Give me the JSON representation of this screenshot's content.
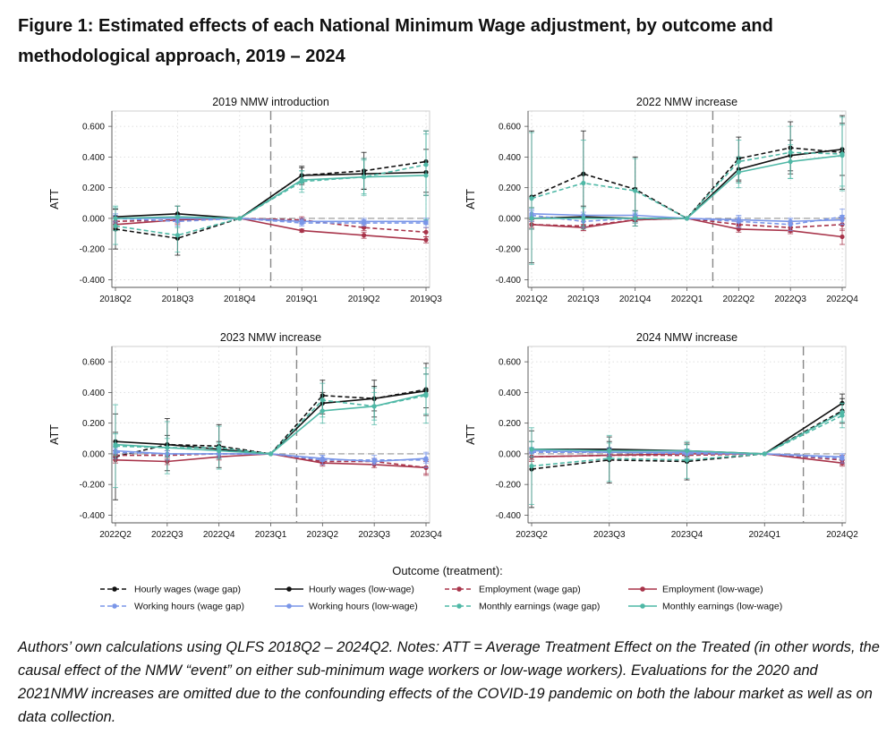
{
  "figure": {
    "title": "Figure 1: Estimated effects of each National Minimum Wage adjustment, by outcome and methodological approach, 2019 – 2024",
    "caption": "Authors’ own calculations using QLFS 2018Q2 – 2024Q2. Notes: ATT = Average Treatment Effect on the Treated (in other words, the causal effect of the NMW “event” on either sub-minimum wage workers or low-wage workers). Evaluations for the 2020 and 2021NMW increases are omitted due to the confounding effects of the COVID-19 pandemic on both the labour market as well as on data collection."
  },
  "legend": {
    "title": "Outcome (treatment):",
    "entries": [
      {
        "label": "Hourly wages (wage gap)",
        "color": "#111111",
        "dash": true
      },
      {
        "label": "Hourly wages (low-wage)",
        "color": "#111111",
        "dash": false
      },
      {
        "label": "Employment (wage gap)",
        "color": "#a8344a",
        "dash": true
      },
      {
        "label": "Employment (low-wage)",
        "color": "#a8344a",
        "dash": false
      },
      {
        "label": "Working hours (wage gap)",
        "color": "#7a96e8",
        "dash": true
      },
      {
        "label": "Working hours (low-wage)",
        "color": "#7a96e8",
        "dash": false
      },
      {
        "label": "Monthly earnings (wage gap)",
        "color": "#4fb8a6",
        "dash": true
      },
      {
        "label": "Monthly earnings (low-wage)",
        "color": "#4fb8a6",
        "dash": false
      }
    ]
  },
  "chart_data": [
    {
      "type": "line",
      "title": "2019 NMW introduction",
      "ylabel": "ATT",
      "ylim": [
        -0.45,
        0.7
      ],
      "yticks": [
        -0.4,
        -0.2,
        0.0,
        0.2,
        0.4,
        0.6
      ],
      "ytick_labels": [
        "-0.400",
        "-0.200",
        "0.000",
        "0.200",
        "0.400",
        "0.600"
      ],
      "categories": [
        "2018Q2",
        "2018Q3",
        "2018Q4",
        "2019Q1",
        "2019Q2",
        "2019Q3"
      ],
      "event_after_index": 2,
      "series": [
        {
          "name": "Hourly wages (wage gap)",
          "values": [
            -0.07,
            -0.13,
            0.0,
            0.28,
            0.31,
            0.37
          ],
          "ci": [
            0.13,
            0.11,
            0.0,
            0.06,
            0.12,
            0.2
          ]
        },
        {
          "name": "Hourly wages (low-wage)",
          "values": [
            0.01,
            0.03,
            0.0,
            0.28,
            0.29,
            0.3
          ],
          "ci": [
            0.05,
            0.05,
            0.0,
            0.05,
            0.1,
            0.15
          ]
        },
        {
          "name": "Employment (wage gap)",
          "values": [
            -0.02,
            -0.01,
            0.0,
            -0.01,
            -0.06,
            -0.09
          ],
          "ci": [
            0.03,
            0.03,
            0.0,
            0.02,
            0.02,
            0.03
          ]
        },
        {
          "name": "Employment (low-wage)",
          "values": [
            -0.04,
            -0.01,
            0.0,
            -0.08,
            -0.11,
            -0.14
          ],
          "ci": [
            0.02,
            0.02,
            0.0,
            0.01,
            0.02,
            0.02
          ]
        },
        {
          "name": "Working hours (wage gap)",
          "values": [
            0.0,
            -0.02,
            0.0,
            -0.03,
            -0.03,
            -0.03
          ],
          "ci": [
            0.03,
            0.03,
            0.0,
            0.02,
            0.02,
            0.03
          ]
        },
        {
          "name": "Working hours (low-wage)",
          "values": [
            0.0,
            0.0,
            0.0,
            -0.02,
            -0.02,
            -0.02
          ],
          "ci": [
            0.02,
            0.02,
            0.0,
            0.02,
            0.02,
            0.02
          ]
        },
        {
          "name": "Monthly earnings (wage gap)",
          "values": [
            -0.05,
            -0.11,
            0.0,
            0.24,
            0.27,
            0.35
          ],
          "ci": [
            0.12,
            0.11,
            0.0,
            0.07,
            0.12,
            0.2
          ]
        },
        {
          "name": "Monthly earnings (low-wage)",
          "values": [
            0.0,
            0.01,
            0.0,
            0.25,
            0.27,
            0.28
          ],
          "ci": [
            0.08,
            0.07,
            0.0,
            0.06,
            0.11,
            0.29
          ]
        }
      ]
    },
    {
      "type": "line",
      "title": "2022 NMW increase",
      "ylabel": "ATT",
      "ylim": [
        -0.45,
        0.7
      ],
      "yticks": [
        -0.4,
        -0.2,
        0.0,
        0.2,
        0.4,
        0.6
      ],
      "ytick_labels": [
        "-0.400",
        "-0.200",
        "0.000",
        "0.200",
        "0.400",
        "0.600"
      ],
      "categories": [
        "2021Q2",
        "2021Q3",
        "2021Q4",
        "2022Q1",
        "2022Q2",
        "2022Q3",
        "2022Q4"
      ],
      "event_after_index": 3,
      "series": [
        {
          "name": "Hourly wages (wage gap)",
          "values": [
            0.14,
            0.29,
            0.19,
            0.0,
            0.39,
            0.46,
            0.43
          ],
          "ci": [
            0.43,
            0.28,
            0.21,
            0.0,
            0.14,
            0.17,
            0.24
          ]
        },
        {
          "name": "Hourly wages (low-wage)",
          "values": [
            0.0,
            0.01,
            0.0,
            0.0,
            0.32,
            0.41,
            0.45
          ],
          "ci": [
            0.07,
            0.07,
            0.05,
            0.0,
            0.08,
            0.1,
            0.17
          ]
        },
        {
          "name": "Employment (wage gap)",
          "values": [
            -0.04,
            -0.05,
            -0.01,
            0.0,
            -0.04,
            -0.06,
            -0.04
          ],
          "ci": [
            0.03,
            0.03,
            0.02,
            0.0,
            0.02,
            0.03,
            0.04
          ]
        },
        {
          "name": "Employment (low-wage)",
          "values": [
            -0.04,
            -0.06,
            -0.01,
            0.0,
            -0.07,
            -0.08,
            -0.12
          ],
          "ci": [
            0.02,
            0.02,
            0.02,
            0.0,
            0.02,
            0.02,
            0.05
          ]
        },
        {
          "name": "Working hours (wage gap)",
          "values": [
            0.02,
            -0.02,
            0.0,
            0.0,
            -0.02,
            -0.04,
            0.01
          ],
          "ci": [
            0.04,
            0.04,
            0.03,
            0.0,
            0.04,
            0.04,
            0.05
          ]
        },
        {
          "name": "Working hours (low-wage)",
          "values": [
            0.03,
            0.02,
            0.02,
            0.0,
            -0.01,
            -0.02,
            -0.01
          ],
          "ci": [
            0.02,
            0.02,
            0.02,
            0.0,
            0.02,
            0.02,
            0.03
          ]
        },
        {
          "name": "Monthly earnings (wage gap)",
          "values": [
            0.13,
            0.23,
            0.18,
            0.0,
            0.37,
            0.43,
            0.42
          ],
          "ci": [
            0.43,
            0.28,
            0.21,
            0.0,
            0.14,
            0.17,
            0.24
          ]
        },
        {
          "name": "Monthly earnings (low-wage)",
          "values": [
            0.0,
            0.0,
            0.0,
            0.0,
            0.3,
            0.37,
            0.41
          ],
          "ci": [
            0.07,
            0.07,
            0.05,
            0.0,
            0.1,
            0.11,
            0.2
          ]
        }
      ]
    },
    {
      "type": "line",
      "title": "2023 NMW increase",
      "ylabel": "ATT",
      "ylim": [
        -0.45,
        0.7
      ],
      "yticks": [
        -0.4,
        -0.2,
        0.0,
        0.2,
        0.4,
        0.6
      ],
      "ytick_labels": [
        "-0.400",
        "-0.200",
        "0.000",
        "0.200",
        "0.400",
        "0.600"
      ],
      "categories": [
        "2022Q2",
        "2022Q3",
        "2022Q4",
        "2023Q1",
        "2023Q2",
        "2023Q3",
        "2023Q4"
      ],
      "event_after_index": 3,
      "series": [
        {
          "name": "Hourly wages (wage gap)",
          "values": [
            -0.02,
            0.06,
            0.05,
            0.0,
            0.38,
            0.36,
            0.42
          ],
          "ci": [
            0.28,
            0.17,
            0.14,
            0.0,
            0.1,
            0.12,
            0.17
          ]
        },
        {
          "name": "Hourly wages (low-wage)",
          "values": [
            0.08,
            0.06,
            0.03,
            0.0,
            0.33,
            0.36,
            0.41
          ],
          "ci": [
            0.06,
            0.06,
            0.05,
            0.0,
            0.07,
            0.08,
            0.11
          ]
        },
        {
          "name": "Employment (wage gap)",
          "values": [
            -0.01,
            -0.01,
            0.0,
            0.0,
            -0.05,
            -0.05,
            -0.09
          ],
          "ci": [
            0.03,
            0.03,
            0.02,
            0.0,
            0.02,
            0.02,
            0.04
          ]
        },
        {
          "name": "Employment (low-wage)",
          "values": [
            -0.04,
            -0.05,
            -0.02,
            0.0,
            -0.06,
            -0.07,
            -0.09
          ],
          "ci": [
            0.02,
            0.02,
            0.02,
            0.0,
            0.02,
            0.02,
            0.05
          ]
        },
        {
          "name": "Working hours (wage gap)",
          "values": [
            0.01,
            0.0,
            0.0,
            0.0,
            -0.04,
            -0.04,
            -0.04
          ],
          "ci": [
            0.04,
            0.04,
            0.03,
            0.0,
            0.03,
            0.03,
            0.05
          ]
        },
        {
          "name": "Working hours (low-wage)",
          "values": [
            0.02,
            0.0,
            0.0,
            0.0,
            -0.03,
            -0.05,
            -0.03
          ],
          "ci": [
            0.02,
            0.02,
            0.02,
            0.0,
            0.02,
            0.02,
            0.03
          ]
        },
        {
          "name": "Monthly earnings (wage gap)",
          "values": [
            0.05,
            0.04,
            0.04,
            0.0,
            0.35,
            0.31,
            0.38
          ],
          "ci": [
            0.27,
            0.17,
            0.14,
            0.0,
            0.11,
            0.12,
            0.18
          ]
        },
        {
          "name": "Monthly earnings (low-wage)",
          "values": [
            0.06,
            0.04,
            0.02,
            0.0,
            0.28,
            0.31,
            0.39
          ],
          "ci": [
            0.07,
            0.06,
            0.05,
            0.0,
            0.08,
            0.09,
            0.13
          ]
        }
      ]
    },
    {
      "type": "line",
      "title": "2024 NMW increase",
      "ylabel": "ATT",
      "ylim": [
        -0.45,
        0.7
      ],
      "yticks": [
        -0.4,
        -0.2,
        0.0,
        0.2,
        0.4,
        0.6
      ],
      "ytick_labels": [
        "-0.400",
        "-0.200",
        "0.000",
        "0.200",
        "0.400",
        "0.600"
      ],
      "categories": [
        "2023Q2",
        "2023Q3",
        "2023Q4",
        "2024Q1",
        "2024Q2"
      ],
      "event_after_index": 3,
      "series": [
        {
          "name": "Hourly wages (wage gap)",
          "values": [
            -0.1,
            -0.04,
            -0.05,
            0.0,
            0.28
          ],
          "ci": [
            0.25,
            0.15,
            0.12,
            0.0,
            0.08
          ]
        },
        {
          "name": "Hourly wages (low-wage)",
          "values": [
            0.03,
            0.03,
            0.02,
            0.0,
            0.33
          ],
          "ci": [
            0.05,
            0.05,
            0.04,
            0.0,
            0.06
          ]
        },
        {
          "name": "Employment (wage gap)",
          "values": [
            -0.02,
            -0.01,
            -0.01,
            0.0,
            -0.04
          ],
          "ci": [
            0.03,
            0.03,
            0.02,
            0.0,
            0.03
          ]
        },
        {
          "name": "Employment (low-wage)",
          "values": [
            -0.02,
            -0.01,
            0.0,
            0.0,
            -0.06
          ],
          "ci": [
            0.02,
            0.02,
            0.02,
            0.0,
            0.02
          ]
        },
        {
          "name": "Working hours (wage gap)",
          "values": [
            0.01,
            0.01,
            0.0,
            0.0,
            -0.03
          ],
          "ci": [
            0.03,
            0.03,
            0.03,
            0.0,
            0.03
          ]
        },
        {
          "name": "Working hours (low-wage)",
          "values": [
            0.02,
            0.01,
            0.01,
            0.0,
            -0.02
          ],
          "ci": [
            0.02,
            0.02,
            0.02,
            0.0,
            0.02
          ]
        },
        {
          "name": "Monthly earnings (wage gap)",
          "values": [
            -0.08,
            -0.03,
            -0.04,
            0.0,
            0.25
          ],
          "ci": [
            0.25,
            0.15,
            0.12,
            0.0,
            0.08
          ]
        },
        {
          "name": "Monthly earnings (low-wage)",
          "values": [
            0.03,
            0.02,
            0.02,
            0.0,
            0.27
          ],
          "ci": [
            0.05,
            0.05,
            0.04,
            0.0,
            0.06
          ]
        }
      ]
    }
  ]
}
